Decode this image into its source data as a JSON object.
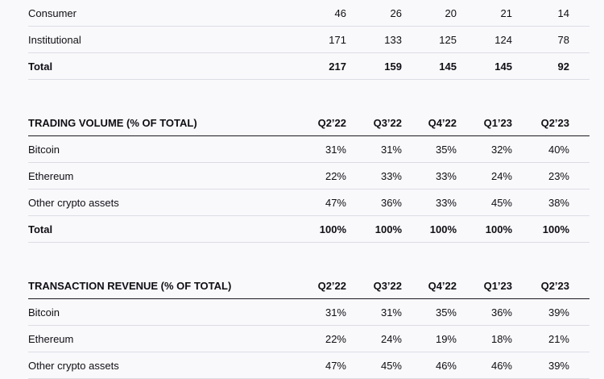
{
  "tables": [
    {
      "heading": null,
      "rows": [
        {
          "label": "Consumer",
          "values": [
            "46",
            "26",
            "20",
            "21",
            "14"
          ]
        },
        {
          "label": "Institutional",
          "values": [
            "171",
            "133",
            "125",
            "124",
            "78"
          ]
        },
        {
          "label": "Total",
          "values": [
            "217",
            "159",
            "145",
            "145",
            "92"
          ],
          "bold": true
        }
      ]
    },
    {
      "heading": "TRADING VOLUME (% OF TOTAL)",
      "columns": [
        "Q2’22",
        "Q3’22",
        "Q4’22",
        "Q1’23",
        "Q2’23"
      ],
      "rows": [
        {
          "label": "Bitcoin",
          "values": [
            "31%",
            "31%",
            "35%",
            "32%",
            "40%"
          ]
        },
        {
          "label": "Ethereum",
          "values": [
            "22%",
            "33%",
            "33%",
            "24%",
            "23%"
          ]
        },
        {
          "label": "Other crypto assets",
          "values": [
            "47%",
            "36%",
            "33%",
            "45%",
            "38%"
          ]
        },
        {
          "label": "Total",
          "values": [
            "100%",
            "100%",
            "100%",
            "100%",
            "100%"
          ],
          "bold": true
        }
      ]
    },
    {
      "heading": "TRANSACTION REVENUE (% OF TOTAL)",
      "columns": [
        "Q2’22",
        "Q3’22",
        "Q4’22",
        "Q1’23",
        "Q2’23"
      ],
      "rows": [
        {
          "label": "Bitcoin",
          "values": [
            "31%",
            "31%",
            "35%",
            "36%",
            "39%"
          ]
        },
        {
          "label": "Ethereum",
          "values": [
            "22%",
            "24%",
            "19%",
            "18%",
            "21%"
          ]
        },
        {
          "label": "Other crypto assets",
          "values": [
            "47%",
            "45%",
            "46%",
            "46%",
            "39%"
          ]
        }
      ]
    }
  ]
}
